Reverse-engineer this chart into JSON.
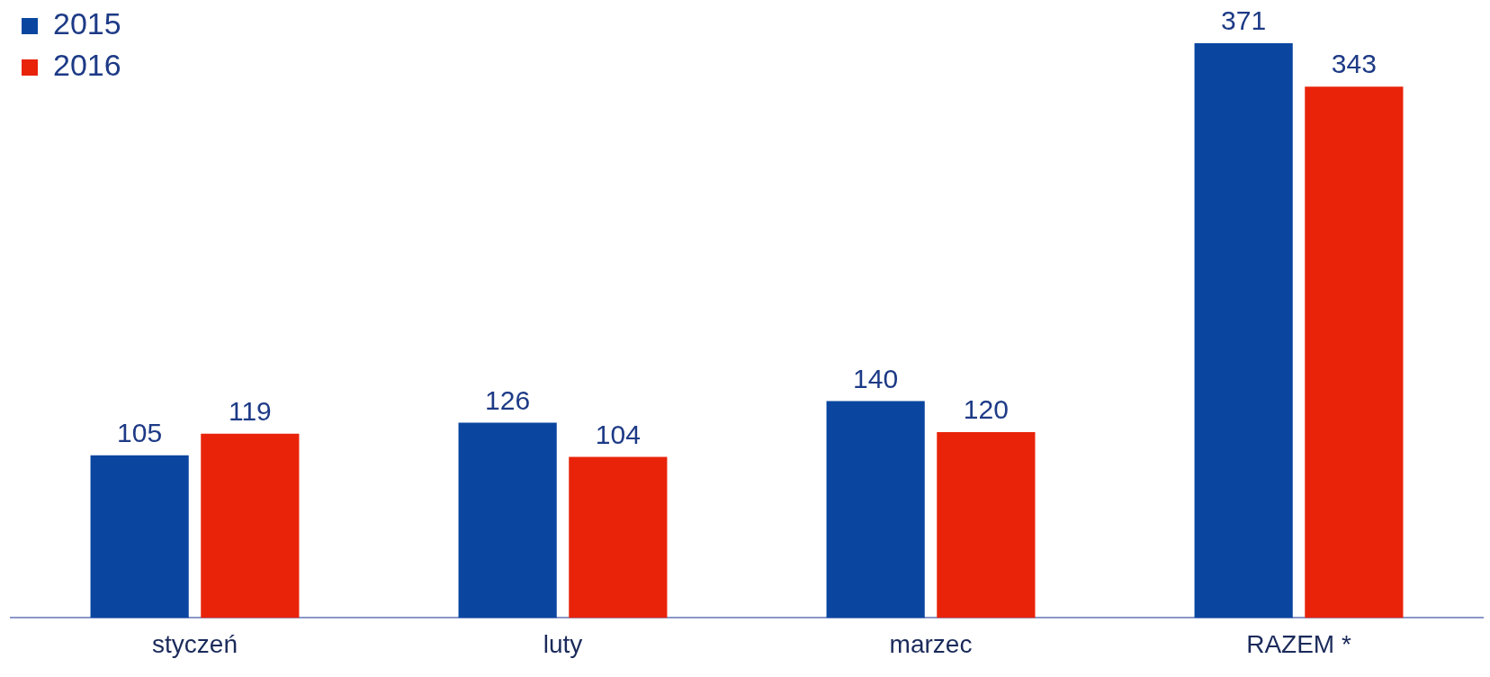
{
  "chart_data": {
    "type": "bar",
    "categories": [
      "styczeń",
      "luty",
      "marzec",
      "RAZEM *"
    ],
    "series": [
      {
        "name": "2015",
        "color": "#0a46a0",
        "values": [
          105,
          126,
          140,
          371
        ]
      },
      {
        "name": "2016",
        "color": "#e8230a",
        "values": [
          119,
          104,
          120,
          343
        ]
      }
    ],
    "data_labels": true,
    "legend": "top left",
    "grid": false
  }
}
